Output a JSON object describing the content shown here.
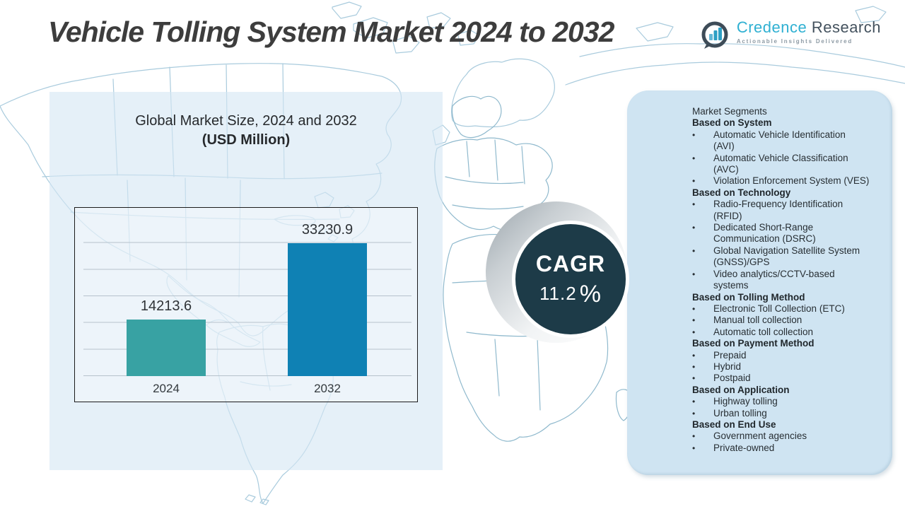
{
  "title": "Vehicle Tolling System Market 2024 to 2032",
  "logo": {
    "name_primary": "Credence",
    "name_secondary": " Research",
    "tagline": "Actionable Insights Delivered"
  },
  "chart_data": {
    "type": "bar",
    "title": "Global Market Size, 2024 and 2032",
    "subtitle": "(USD Million)",
    "categories": [
      "2024",
      "2032"
    ],
    "values": [
      14213.6,
      33230.9
    ],
    "value_labels": [
      "14213.6",
      "33230.9"
    ],
    "bar_colors": [
      "#38a2a3",
      "#0f81b4"
    ],
    "xlabel": "",
    "ylabel": "",
    "ylim": [
      0,
      40000
    ],
    "grid": true,
    "legend": "none"
  },
  "cagr": {
    "label": "CAGR",
    "value": "11.2",
    "unit": "%"
  },
  "segments": {
    "title": "Market Segments",
    "groups": [
      {
        "heading": "Based on System",
        "items": [
          "Automatic Vehicle Identification\n(AVI)",
          "Automatic Vehicle Classification\n(AVC)",
          "Violation Enforcement System (VES)"
        ]
      },
      {
        "heading": "Based on Technology",
        "items": [
          "Radio-Frequency Identification\n(RFID)",
          "Dedicated Short-Range\nCommunication (DSRC)",
          "Global Navigation Satellite System\n(GNSS)/GPS",
          "Video analytics/CCTV-based\nsystems"
        ]
      },
      {
        "heading": "Based on Tolling Method",
        "items": [
          "Electronic Toll Collection (ETC)",
          "Manual toll collection",
          "Automatic toll collection"
        ]
      },
      {
        "heading": "Based on Payment Method",
        "items": [
          "Prepaid",
          "Hybrid",
          "Postpaid"
        ]
      },
      {
        "heading": "Based on Application",
        "items": [
          "Highway tolling",
          "Urban tolling"
        ]
      },
      {
        "heading": "Based on End Use",
        "items": [
          "Government agencies",
          "Private-owned"
        ]
      }
    ]
  },
  "colors": {
    "accent_teal": "#38a2a3",
    "accent_blue": "#0f81b4",
    "cagr_circle": "#1d3b48",
    "panel_blue": "#cfe4f2",
    "left_panel_blue": "#dce9f5",
    "map_stroke": "#a9cbdd",
    "logo_cyan": "#2fb0d2",
    "logo_slate": "#44525e"
  }
}
